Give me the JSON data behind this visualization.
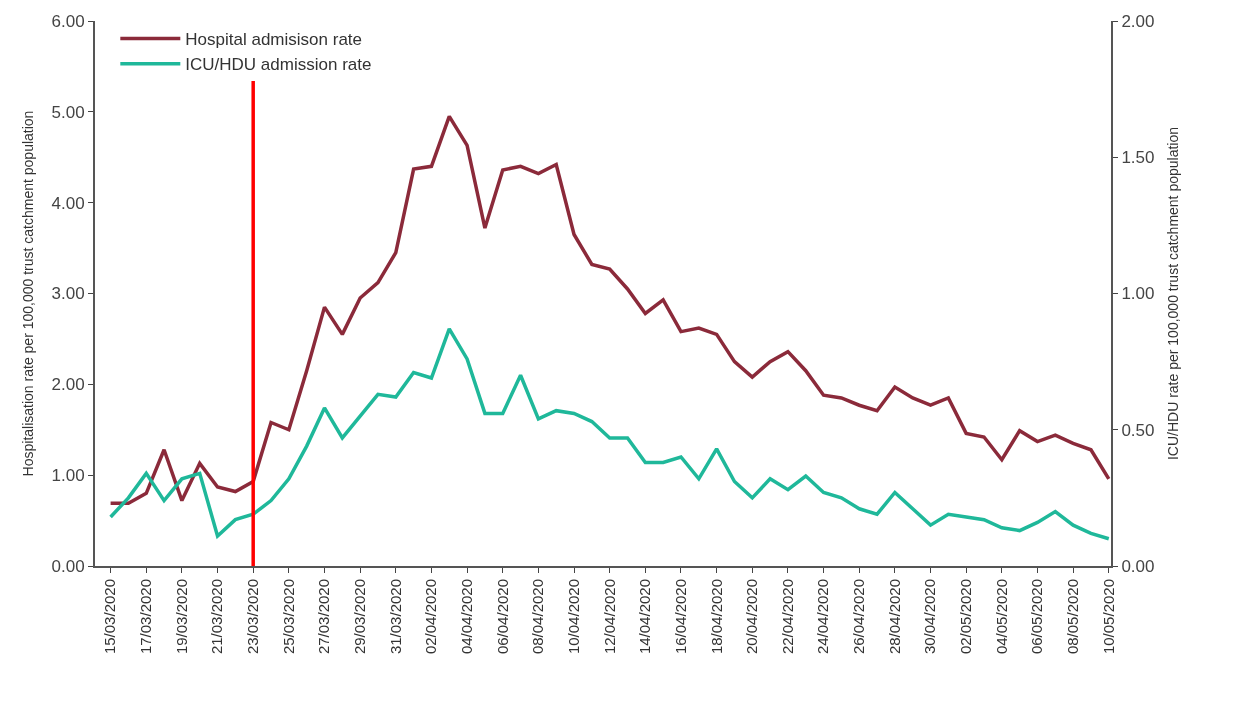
{
  "chart_data": {
    "type": "line",
    "x": [
      "2020-03-15",
      "2020-03-16",
      "2020-03-17",
      "2020-03-18",
      "2020-03-19",
      "2020-03-20",
      "2020-03-21",
      "2020-03-22",
      "2020-03-23",
      "2020-03-24",
      "2020-03-25",
      "2020-03-26",
      "2020-03-27",
      "2020-03-28",
      "2020-03-29",
      "2020-03-30",
      "2020-03-31",
      "2020-04-01",
      "2020-04-02",
      "2020-04-03",
      "2020-04-04",
      "2020-04-05",
      "2020-04-06",
      "2020-04-07",
      "2020-04-08",
      "2020-04-09",
      "2020-04-10",
      "2020-04-11",
      "2020-04-12",
      "2020-04-13",
      "2020-04-14",
      "2020-04-15",
      "2020-04-16",
      "2020-04-17",
      "2020-04-18",
      "2020-04-19",
      "2020-04-20",
      "2020-04-21",
      "2020-04-22",
      "2020-04-23",
      "2020-04-24",
      "2020-04-25",
      "2020-04-26",
      "2020-04-27",
      "2020-04-28",
      "2020-04-29",
      "2020-04-30",
      "2020-05-01",
      "2020-05-02",
      "2020-05-03",
      "2020-05-04",
      "2020-05-05",
      "2020-05-06",
      "2020-05-07",
      "2020-05-08",
      "2020-05-09",
      "2020-05-10"
    ],
    "series": [
      {
        "name": "Hospital admisison rate",
        "color": "#8b2a3a",
        "values": [
          0.69,
          0.69,
          0.8,
          1.28,
          0.72,
          1.13,
          0.87,
          0.82,
          0.93,
          1.58,
          1.5,
          2.15,
          2.85,
          2.55,
          2.95,
          3.12,
          3.45,
          4.37,
          4.4,
          4.95,
          4.63,
          3.72,
          4.36,
          4.4,
          4.32,
          4.42,
          3.65,
          3.32,
          3.27,
          3.05,
          2.78,
          2.93,
          2.58,
          2.62,
          2.55,
          2.25,
          2.08,
          2.25,
          2.36,
          2.15,
          1.88,
          1.85,
          1.77,
          1.71,
          1.97,
          1.85,
          1.77,
          1.85,
          1.46,
          1.42,
          1.17,
          1.49,
          1.37,
          1.44,
          1.35,
          1.28,
          0.96
        ]
      },
      {
        "name": "ICU/HDU admission rate",
        "color": "#1fb89a",
        "axis": "y2",
        "values": [
          0.18,
          0.25,
          0.34,
          0.24,
          0.32,
          0.34,
          0.11,
          0.17,
          0.19,
          0.24,
          0.32,
          0.44,
          0.58,
          0.47,
          0.55,
          0.63,
          0.62,
          0.71,
          0.69,
          0.87,
          0.76,
          0.56,
          0.56,
          0.7,
          0.54,
          0.57,
          0.56,
          0.53,
          0.47,
          0.47,
          0.38,
          0.38,
          0.4,
          0.32,
          0.43,
          0.31,
          0.25,
          0.32,
          0.28,
          0.33,
          0.27,
          0.25,
          0.21,
          0.19,
          0.27,
          0.21,
          0.15,
          0.19,
          0.18,
          0.17,
          0.14,
          0.13,
          0.16,
          0.2,
          0.15,
          0.12,
          0.1
        ]
      }
    ],
    "ylabel": "Hospitalisation rate per 100,000 trust catchment population",
    "y2label": "ICU/HDU rate per 100,000 trust catchment population",
    "ylim": [
      0,
      6
    ],
    "yticks": [
      {
        "value": 0,
        "label": "0.00"
      },
      {
        "value": 1,
        "label": "1.00"
      },
      {
        "value": 2,
        "label": "2.00"
      },
      {
        "value": 3,
        "label": "3.00"
      },
      {
        "value": 4,
        "label": "4.00"
      },
      {
        "value": 5,
        "label": "5.00"
      },
      {
        "value": 6,
        "label": "6.00"
      }
    ],
    "y2lim": [
      0,
      2
    ],
    "y2ticks": [
      {
        "value": 0,
        "label": "0.00"
      },
      {
        "value": 0.5,
        "label": "0.50"
      },
      {
        "value": 1,
        "label": "1.00"
      },
      {
        "value": 1.5,
        "label": "1.50"
      },
      {
        "value": 2,
        "label": "2.00"
      }
    ],
    "xlim": [
      "2020-03-14T03:00",
      "2020-05-10T03:00"
    ],
    "xticks": [
      {
        "value": "2020-03-15",
        "label": "15/03/2020"
      },
      {
        "value": "2020-03-17",
        "label": "17/03/2020"
      },
      {
        "value": "2020-03-19",
        "label": "19/03/2020"
      },
      {
        "value": "2020-03-21",
        "label": "21/03/2020"
      },
      {
        "value": "2020-03-23",
        "label": "23/03/2020"
      },
      {
        "value": "2020-03-25",
        "label": "25/03/2020"
      },
      {
        "value": "2020-03-27",
        "label": "27/03/2020"
      },
      {
        "value": "2020-03-29",
        "label": "29/03/2020"
      },
      {
        "value": "2020-03-31",
        "label": "31/03/2020"
      },
      {
        "value": "2020-04-02",
        "label": "02/04/2020"
      },
      {
        "value": "2020-04-04",
        "label": "04/04/2020"
      },
      {
        "value": "2020-04-06",
        "label": "06/04/2020"
      },
      {
        "value": "2020-04-08",
        "label": "08/04/2020"
      },
      {
        "value": "2020-04-10",
        "label": "10/04/2020"
      },
      {
        "value": "2020-04-12",
        "label": "12/04/2020"
      },
      {
        "value": "2020-04-14",
        "label": "14/04/2020"
      },
      {
        "value": "2020-04-16",
        "label": "16/04/2020"
      },
      {
        "value": "2020-04-18",
        "label": "18/04/2020"
      },
      {
        "value": "2020-04-20",
        "label": "20/04/2020"
      },
      {
        "value": "2020-04-22",
        "label": "22/04/2020"
      },
      {
        "value": "2020-04-24",
        "label": "24/04/2020"
      },
      {
        "value": "2020-04-26",
        "label": "26/04/2020"
      },
      {
        "value": "2020-04-28",
        "label": "28/04/2020"
      },
      {
        "value": "2020-04-30",
        "label": "30/04/2020"
      },
      {
        "value": "2020-05-02",
        "label": "02/05/2020"
      },
      {
        "value": "2020-05-04",
        "label": "04/05/2020"
      },
      {
        "value": "2020-05-06",
        "label": "06/05/2020"
      },
      {
        "value": "2020-05-08",
        "label": "08/05/2020"
      },
      {
        "value": "2020-05-10",
        "label": "10/05/2020"
      }
    ],
    "ref_lines": [
      {
        "axis": "x",
        "value": "2020-03-23",
        "color": "#ff0000"
      }
    ],
    "legend": "top left",
    "marker": "none",
    "line_style": "solid"
  }
}
